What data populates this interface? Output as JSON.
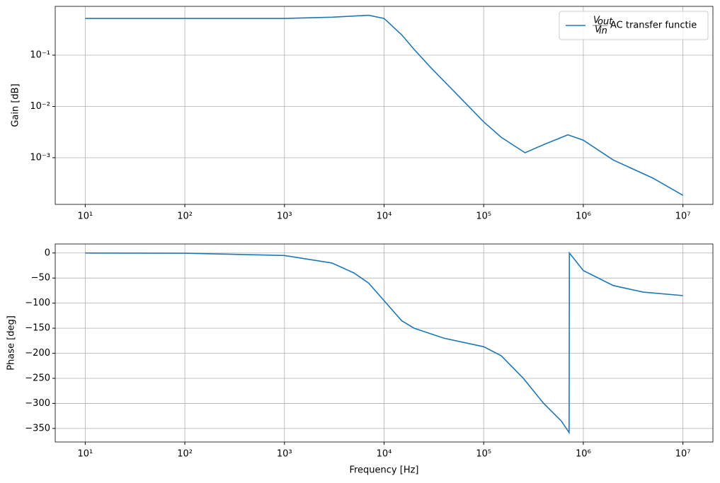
{
  "chart_data": [
    {
      "type": "line",
      "xscale": "log",
      "yscale": "log",
      "grid": true,
      "legend": "upper right",
      "ylabel": "Gain [dB]",
      "legend_fraction": {
        "num": "V",
        "num_sub": "out",
        "den": "V",
        "den_sub": "in"
      },
      "x": [
        10,
        100,
        1000,
        3000,
        7000,
        10000,
        15000,
        20000,
        30000,
        50000,
        100000,
        150000,
        260000,
        400000,
        700000,
        1000000,
        2000000,
        5000000,
        10000000
      ],
      "series": [
        {
          "name": "AC transfer functie",
          "color": "#1f77b4",
          "values": [
            0.52,
            0.52,
            0.52,
            0.55,
            0.6,
            0.52,
            0.25,
            0.13,
            0.055,
            0.02,
            0.005,
            0.0025,
            0.00125,
            0.0018,
            0.0028,
            0.0022,
            0.0009,
            0.0004,
            0.000185
          ]
        }
      ],
      "xlim": [
        5,
        20000000
      ],
      "xticks": [
        {
          "value": 10,
          "label": "10¹"
        },
        {
          "value": 100,
          "label": "10²"
        },
        {
          "value": 1000,
          "label": "10³"
        },
        {
          "value": 10000,
          "label": "10⁴"
        },
        {
          "value": 100000,
          "label": "10⁵"
        },
        {
          "value": 1000000,
          "label": "10⁶"
        },
        {
          "value": 10000000,
          "label": "10⁷"
        }
      ],
      "ylim": [
        0.000123,
        0.895
      ],
      "yticks": [
        {
          "value": 0.001,
          "label": "10⁻³"
        },
        {
          "value": 0.01,
          "label": "10⁻²"
        },
        {
          "value": 0.1,
          "label": "10⁻¹"
        }
      ]
    },
    {
      "type": "line",
      "xscale": "log",
      "grid": true,
      "xlabel": "Frequency [Hz]",
      "ylabel": "Phase [deg]",
      "x": [
        10,
        100,
        1000,
        3000,
        5000,
        7000,
        10000,
        15000,
        20000,
        40000,
        100000,
        150000,
        250000,
        400000,
        600000,
        720000,
        725000,
        1000000,
        2000000,
        4000000,
        10000000
      ],
      "series": [
        {
          "name": "AC transfer functie",
          "color": "#1f77b4",
          "values": [
            0,
            -0.5,
            -5,
            -20,
            -40,
            -60,
            -95,
            -135,
            -150,
            -170,
            -187,
            -205,
            -250,
            -300,
            -335,
            -358,
            0,
            -35,
            -65,
            -78,
            -85
          ]
        }
      ],
      "xlim": [
        5,
        20000000
      ],
      "xticks": [
        {
          "value": 10,
          "label": "10¹"
        },
        {
          "value": 100,
          "label": "10²"
        },
        {
          "value": 1000,
          "label": "10³"
        },
        {
          "value": 10000,
          "label": "10⁴"
        },
        {
          "value": 100000,
          "label": "10⁵"
        },
        {
          "value": 1000000,
          "label": "10⁶"
        },
        {
          "value": 10000000,
          "label": "10⁷"
        }
      ],
      "ylim": [
        -377,
        18
      ],
      "yticks": [
        0,
        {
          "value": -50,
          "label": "−50"
        },
        {
          "value": -100,
          "label": "−100"
        },
        {
          "value": -150,
          "label": "−150"
        },
        {
          "value": -200,
          "label": "−200"
        },
        {
          "value": -250,
          "label": "−250"
        },
        {
          "value": -300,
          "label": "−300"
        },
        {
          "value": -350,
          "label": "−350"
        }
      ]
    }
  ]
}
